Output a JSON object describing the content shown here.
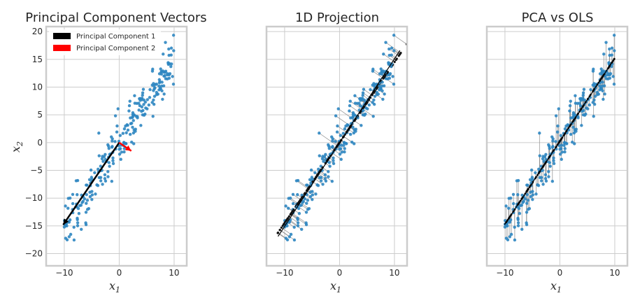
{
  "colors": {
    "points": "#2e86c1",
    "pc1": "#000000",
    "pc2": "#ff0000",
    "grid": "#cccccc",
    "spine": "#cccccc",
    "link": "#8c8c8c"
  },
  "chart_data": [
    {
      "type": "scatter",
      "title": "Principal Component Vectors",
      "xlabel": "x",
      "xlabel_sub": "1",
      "ylabel": "x",
      "ylabel_sub": "2",
      "xlim": [
        -13.3,
        12.3
      ],
      "ylim": [
        -22.2,
        20.9
      ],
      "xticks": [
        -10,
        0,
        10
      ],
      "xtick_labels": [
        "−10",
        "0",
        "10"
      ],
      "yticks": [
        20,
        15,
        10,
        5,
        0,
        -5,
        -10,
        -15,
        -20
      ],
      "ytick_labels": [
        "20",
        "15",
        "10",
        "5",
        "0",
        "−5",
        "−10",
        "−15",
        "−20"
      ],
      "grid": true,
      "legend": {
        "placement": "top-left",
        "entries": [
          {
            "label": "Principal Component 1",
            "color": "#000000"
          },
          {
            "label": "Principal Component 2",
            "color": "#ff0000"
          }
        ]
      },
      "vectors": [
        {
          "name": "Principal Component 1",
          "from": [
            0,
            0
          ],
          "to": [
            -10.2,
            -14.8
          ]
        },
        {
          "name": "Principal Component 2",
          "from": [
            0,
            0
          ],
          "to": [
            2.2,
            -1.5
          ]
        }
      ]
    },
    {
      "type": "scatter",
      "title": "1D Projection",
      "xlabel": "x",
      "xlabel_sub": "1",
      "xlim": [
        -13.3,
        12.3
      ],
      "ylim": [
        -22.2,
        20.9
      ],
      "xticks": [
        -10,
        0,
        10
      ],
      "xtick_labels": [
        "−10",
        "0",
        "10"
      ],
      "grid": true,
      "projection_line": {
        "from": [
          -11.2,
          -16.9
        ],
        "to": [
          11.0,
          16.6
        ]
      }
    },
    {
      "type": "scatter",
      "title": "PCA vs OLS",
      "xlabel": "x",
      "xlabel_sub": "1",
      "xlim": [
        -13.3,
        12.3
      ],
      "ylim": [
        -22.2,
        20.9
      ],
      "xticks": [
        -10,
        0,
        10
      ],
      "xtick_labels": [
        "−10",
        "0",
        "10"
      ],
      "grid": true,
      "fit_line": {
        "from": [
          -10,
          -14.7
        ],
        "to": [
          10,
          15.2
        ]
      }
    }
  ]
}
